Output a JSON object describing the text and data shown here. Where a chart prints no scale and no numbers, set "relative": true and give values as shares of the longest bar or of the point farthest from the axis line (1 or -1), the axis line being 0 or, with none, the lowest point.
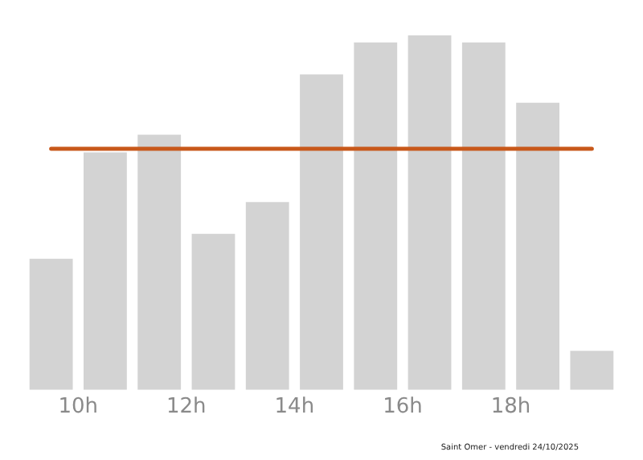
{
  "chart_data": {
    "type": "bar",
    "relative": true,
    "x": [
      9.5,
      10.5,
      11.5,
      12.5,
      13.5,
      14.5,
      15.5,
      16.5,
      17.5,
      18.5,
      19.5
    ],
    "values": [
      0.37,
      0.67,
      0.72,
      0.44,
      0.53,
      0.89,
      0.98,
      1,
      0.98,
      0.81,
      0.11
    ],
    "color": "#d3d3d3",
    "xlim": [
      9,
      20
    ],
    "xticks": [
      {
        "value": 10,
        "label": "10h"
      },
      {
        "value": 12,
        "label": "12h"
      },
      {
        "value": 14,
        "label": "14h"
      },
      {
        "value": 16,
        "label": "16h"
      },
      {
        "value": 18,
        "label": "18h"
      }
    ],
    "ref_lines": [
      {
        "axis": "y",
        "value": 0.68,
        "label": null,
        "color": "#c8581a"
      }
    ],
    "annotations": [
      "Saint Omer - vendredi 24/10/2025"
    ],
    "grid": false,
    "legend": false
  }
}
